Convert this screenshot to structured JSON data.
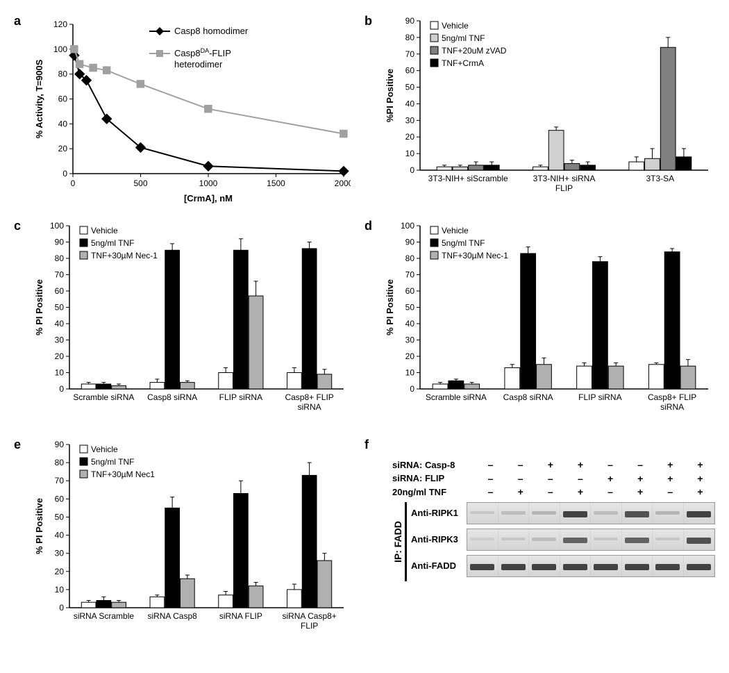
{
  "colors": {
    "black": "#000000",
    "gray_series": "#a0a0a0",
    "white_fill": "#ffffff",
    "light_gray_fill": "#d0d0d0",
    "mid_gray_fill": "#808080",
    "axis": "#000000",
    "background": "#ffffff"
  },
  "panel_a": {
    "label": "a",
    "type": "line",
    "xlabel": "[CrmA], nM",
    "ylabel": "% Activity, T=900S",
    "xlim": [
      0,
      2000
    ],
    "ylim": [
      0,
      120
    ],
    "xticks": [
      0,
      500,
      1000,
      1500,
      2000
    ],
    "yticks": [
      0,
      20,
      40,
      60,
      80,
      100,
      120
    ],
    "label_fontsize": 13,
    "tick_fontsize": 12,
    "series": [
      {
        "name": "Casp8 homodimer",
        "color": "#000000",
        "marker": "diamond",
        "marker_size": 7,
        "line_width": 2,
        "points": [
          [
            10,
            95
          ],
          [
            50,
            80
          ],
          [
            100,
            75
          ],
          [
            250,
            44
          ],
          [
            500,
            21
          ],
          [
            1000,
            6
          ],
          [
            2000,
            2
          ]
        ]
      },
      {
        "name": "Casp8^DA-FLIP heterodimer",
        "color": "#a0a0a0",
        "marker": "square",
        "marker_size": 7,
        "line_width": 2,
        "points": [
          [
            10,
            100
          ],
          [
            50,
            88
          ],
          [
            150,
            85
          ],
          [
            250,
            83
          ],
          [
            500,
            72
          ],
          [
            1000,
            52
          ],
          [
            2000,
            32
          ]
        ]
      }
    ],
    "legend_position": "inside-top-right"
  },
  "panel_b": {
    "label": "b",
    "type": "grouped-bar",
    "ylabel": "%PI Positive",
    "ylim": [
      0,
      90
    ],
    "yticks": [
      0,
      10,
      20,
      30,
      40,
      50,
      60,
      70,
      80,
      90
    ],
    "label_fontsize": 13,
    "tick_fontsize": 12,
    "groups": [
      "3T3-NIH+ siScramble",
      "3T3-NIH+ siRNA FLIP",
      "3T3-SA"
    ],
    "treatments": [
      {
        "name": "Vehicle",
        "fill": "#ffffff",
        "stroke": "#000000"
      },
      {
        "name": "5ng/ml TNF",
        "fill": "#d0d0d0",
        "stroke": "#000000"
      },
      {
        "name": "TNF+20uM zVAD",
        "fill": "#808080",
        "stroke": "#000000"
      },
      {
        "name": "TNF+CrmA",
        "fill": "#000000",
        "stroke": "#000000"
      }
    ],
    "values": [
      [
        2,
        2,
        3,
        3
      ],
      [
        2,
        24,
        4,
        3
      ],
      [
        5,
        7,
        74,
        8
      ]
    ],
    "errors": [
      [
        1,
        1,
        2,
        2
      ],
      [
        1,
        2,
        2,
        2
      ],
      [
        3,
        6,
        6,
        5
      ]
    ]
  },
  "panel_c": {
    "label": "c",
    "type": "grouped-bar",
    "ylabel": "% PI Positive",
    "ylim": [
      0,
      100
    ],
    "yticks": [
      0,
      10,
      20,
      30,
      40,
      50,
      60,
      70,
      80,
      90,
      100
    ],
    "label_fontsize": 13,
    "tick_fontsize": 12,
    "groups": [
      "Scramble siRNA",
      "Casp8 siRNA",
      "FLIP siRNA",
      "Casp8+ FLIP siRNA"
    ],
    "treatments": [
      {
        "name": "Vehicle",
        "fill": "#ffffff",
        "stroke": "#000000"
      },
      {
        "name": "5ng/ml TNF",
        "fill": "#000000",
        "stroke": "#000000"
      },
      {
        "name": "TNF+30µM Nec-1",
        "fill": "#b0b0b0",
        "stroke": "#000000"
      }
    ],
    "values": [
      [
        3,
        3,
        2
      ],
      [
        4,
        85,
        4
      ],
      [
        10,
        85,
        57
      ],
      [
        10,
        86,
        9
      ]
    ],
    "errors": [
      [
        1,
        1,
        1
      ],
      [
        2,
        4,
        1
      ],
      [
        3,
        7,
        9
      ],
      [
        3,
        4,
        3
      ]
    ]
  },
  "panel_d": {
    "label": "d",
    "type": "grouped-bar",
    "ylabel": "% PI Positive",
    "ylim": [
      0,
      100
    ],
    "yticks": [
      0,
      10,
      20,
      30,
      40,
      50,
      60,
      70,
      80,
      90,
      100
    ],
    "label_fontsize": 13,
    "tick_fontsize": 12,
    "groups": [
      "Scramble siRNA",
      "Casp8 siRNA",
      "FLIP siRNA",
      "Casp8+ FLIP siRNA"
    ],
    "treatments": [
      {
        "name": "Vehicle",
        "fill": "#ffffff",
        "stroke": "#000000"
      },
      {
        "name": "5ng/ml TNF",
        "fill": "#000000",
        "stroke": "#000000"
      },
      {
        "name": "TNF+30µM Nec-1",
        "fill": "#b0b0b0",
        "stroke": "#000000"
      }
    ],
    "values": [
      [
        3,
        5,
        3
      ],
      [
        13,
        83,
        15
      ],
      [
        14,
        78,
        14
      ],
      [
        15,
        84,
        14
      ]
    ],
    "errors": [
      [
        1,
        1,
        1
      ],
      [
        2,
        4,
        4
      ],
      [
        2,
        3,
        2
      ],
      [
        1,
        2,
        4
      ]
    ]
  },
  "panel_e": {
    "label": "e",
    "type": "grouped-bar",
    "ylabel": "% PI Positive",
    "ylim": [
      0,
      90
    ],
    "yticks": [
      0,
      10,
      20,
      30,
      40,
      50,
      60,
      70,
      80,
      90
    ],
    "label_fontsize": 13,
    "tick_fontsize": 12,
    "groups": [
      "siRNA Scramble",
      "siRNA Casp8",
      "siRNA FLIP",
      "siRNA Casp8+ FLIP"
    ],
    "treatments": [
      {
        "name": "Vehicle",
        "fill": "#ffffff",
        "stroke": "#000000"
      },
      {
        "name": "5ng/ml TNF",
        "fill": "#000000",
        "stroke": "#000000"
      },
      {
        "name": "TNF+30µM Nec1",
        "fill": "#b0b0b0",
        "stroke": "#000000"
      }
    ],
    "values": [
      [
        3,
        4,
        3
      ],
      [
        6,
        55,
        16
      ],
      [
        7,
        63,
        12
      ],
      [
        10,
        73,
        26
      ]
    ],
    "errors": [
      [
        1,
        2,
        1
      ],
      [
        1,
        6,
        2
      ],
      [
        2,
        7,
        2
      ],
      [
        3,
        7,
        4
      ]
    ]
  },
  "panel_f": {
    "label": "f",
    "type": "western-blot",
    "header_rows": [
      {
        "label": "siRNA: Casp-8",
        "values": [
          "–",
          "–",
          "+",
          "+",
          "–",
          "–",
          "+",
          "+"
        ]
      },
      {
        "label": "siRNA: FLIP",
        "values": [
          "–",
          "–",
          "–",
          "–",
          "+",
          "+",
          "+",
          "+"
        ]
      },
      {
        "label": "20ng/ml TNF",
        "values": [
          "–",
          "+",
          "–",
          "+",
          "–",
          "+",
          "–",
          "+"
        ]
      }
    ],
    "side_label": "IP: FADD",
    "rows": [
      {
        "label": "Anti-RIPK1",
        "band_intensity": [
          0.1,
          0.15,
          0.2,
          0.9,
          0.15,
          0.8,
          0.2,
          0.9
        ]
      },
      {
        "label": "Anti-RIPK3",
        "band_intensity": [
          0.05,
          0.1,
          0.15,
          0.7,
          0.1,
          0.7,
          0.1,
          0.8
        ]
      },
      {
        "label": "Anti-FADD",
        "band_intensity": [
          0.9,
          0.9,
          0.9,
          0.9,
          0.9,
          0.9,
          0.9,
          0.9
        ]
      }
    ],
    "band_color": "#3a3a3a",
    "strip_bg": "#dcdcdc"
  }
}
